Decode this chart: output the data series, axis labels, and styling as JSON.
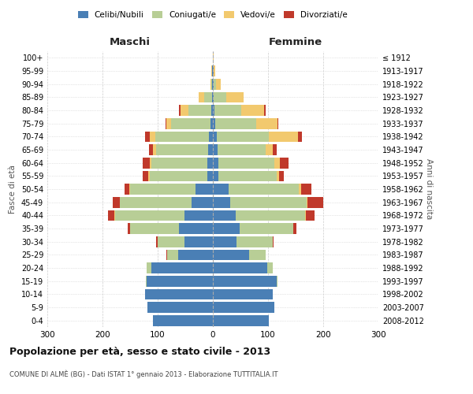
{
  "age_groups": [
    "0-4",
    "5-9",
    "10-14",
    "15-19",
    "20-24",
    "25-29",
    "30-34",
    "35-39",
    "40-44",
    "45-49",
    "50-54",
    "55-59",
    "60-64",
    "65-69",
    "70-74",
    "75-79",
    "80-84",
    "85-89",
    "90-94",
    "95-99",
    "100+"
  ],
  "birth_years": [
    "2008-2012",
    "2003-2007",
    "1998-2002",
    "1993-1997",
    "1988-1992",
    "1983-1987",
    "1978-1982",
    "1973-1977",
    "1968-1972",
    "1963-1967",
    "1958-1962",
    "1953-1957",
    "1948-1952",
    "1943-1947",
    "1938-1942",
    "1933-1937",
    "1928-1932",
    "1923-1927",
    "1918-1922",
    "1913-1917",
    "≤ 1912"
  ],
  "maschi": {
    "celibe": [
      108,
      118,
      123,
      120,
      112,
      63,
      52,
      62,
      52,
      38,
      32,
      10,
      10,
      8,
      7,
      4,
      3,
      2,
      1,
      1,
      0
    ],
    "coniugato": [
      0,
      0,
      0,
      2,
      8,
      20,
      48,
      88,
      125,
      130,
      118,
      105,
      102,
      95,
      98,
      72,
      42,
      14,
      2,
      1,
      0
    ],
    "vedovo": [
      0,
      0,
      0,
      0,
      0,
      0,
      0,
      0,
      1,
      1,
      2,
      2,
      3,
      5,
      10,
      8,
      14,
      10,
      2,
      1,
      0
    ],
    "divorziato": [
      0,
      0,
      0,
      0,
      0,
      2,
      3,
      5,
      12,
      12,
      8,
      10,
      12,
      8,
      8,
      2,
      2,
      0,
      0,
      0,
      0
    ]
  },
  "femmine": {
    "nubile": [
      102,
      112,
      108,
      115,
      98,
      65,
      43,
      48,
      42,
      32,
      28,
      10,
      10,
      8,
      7,
      4,
      3,
      2,
      2,
      1,
      0
    ],
    "coniugata": [
      0,
      0,
      0,
      2,
      10,
      30,
      65,
      98,
      125,
      138,
      128,
      105,
      102,
      88,
      95,
      75,
      48,
      22,
      4,
      1,
      0
    ],
    "vedova": [
      0,
      0,
      0,
      0,
      0,
      0,
      0,
      0,
      2,
      2,
      4,
      5,
      10,
      12,
      52,
      38,
      42,
      32,
      8,
      2,
      1
    ],
    "divorziata": [
      0,
      0,
      0,
      0,
      0,
      0,
      2,
      5,
      15,
      28,
      18,
      8,
      15,
      8,
      8,
      2,
      2,
      0,
      0,
      0,
      0
    ]
  },
  "colors": {
    "celibe_nubile": "#4a7fb5",
    "coniugato_a": "#b8ce96",
    "vedovo_a": "#f2c96e",
    "divorziato_a": "#c0392b"
  },
  "legend_labels": [
    "Celibi/Nubili",
    "Coniugati/e",
    "Vedovi/e",
    "Divorziati/e"
  ],
  "xlim": 300,
  "title": "Popolazione per età, sesso e stato civile - 2013",
  "subtitle": "COMUNE DI ALMÈ (BG) - Dati ISTAT 1° gennaio 2013 - Elaborazione TUTTITALIA.IT",
  "ylabel_left": "Fasce di età",
  "ylabel_right": "Anni di nascita",
  "xlabel_left": "Maschi",
  "xlabel_right": "Femmine"
}
